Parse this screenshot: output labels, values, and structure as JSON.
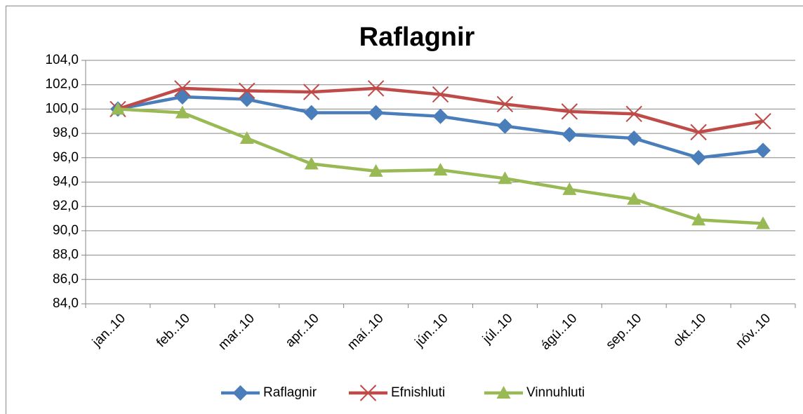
{
  "chart_data": {
    "type": "line",
    "title": "Raflagnir",
    "categories": [
      "jan..10",
      "feb..10",
      "mar..10",
      "apr..10",
      "maí..10",
      "jún..10",
      "júl..10",
      "ágú..10",
      "sep..10",
      "okt..10",
      "nóv..10"
    ],
    "series": [
      {
        "name": "Raflagnir",
        "color": "#4a7ebb",
        "marker": "diamond",
        "values": [
          100.0,
          101.0,
          100.8,
          99.7,
          99.7,
          99.4,
          98.6,
          97.9,
          97.6,
          96.0,
          96.6
        ]
      },
      {
        "name": "Efnishluti",
        "color": "#be4b48",
        "marker": "x",
        "values": [
          100.0,
          101.7,
          101.5,
          101.4,
          101.7,
          101.2,
          100.4,
          99.8,
          99.6,
          98.1,
          99.0
        ]
      },
      {
        "name": "Vinnuhluti",
        "color": "#98b954",
        "marker": "triangle",
        "values": [
          100.0,
          99.7,
          97.6,
          95.5,
          94.9,
          95.0,
          94.3,
          93.4,
          92.6,
          90.9,
          90.6
        ]
      }
    ],
    "ylim": [
      84,
      104
    ],
    "yticks": [
      {
        "value": 84,
        "label": "84,0"
      },
      {
        "value": 86,
        "label": "86,0"
      },
      {
        "value": 88,
        "label": "88,0"
      },
      {
        "value": 90,
        "label": "90,0"
      },
      {
        "value": 92,
        "label": "92,0"
      },
      {
        "value": 94,
        "label": "94,0"
      },
      {
        "value": 96,
        "label": "96,0"
      },
      {
        "value": 98,
        "label": "98,0"
      },
      {
        "value": 100,
        "label": "100,0"
      },
      {
        "value": 102,
        "label": "102,0"
      },
      {
        "value": 104,
        "label": "104,0"
      }
    ],
    "grid": true,
    "legend": "bottom"
  }
}
